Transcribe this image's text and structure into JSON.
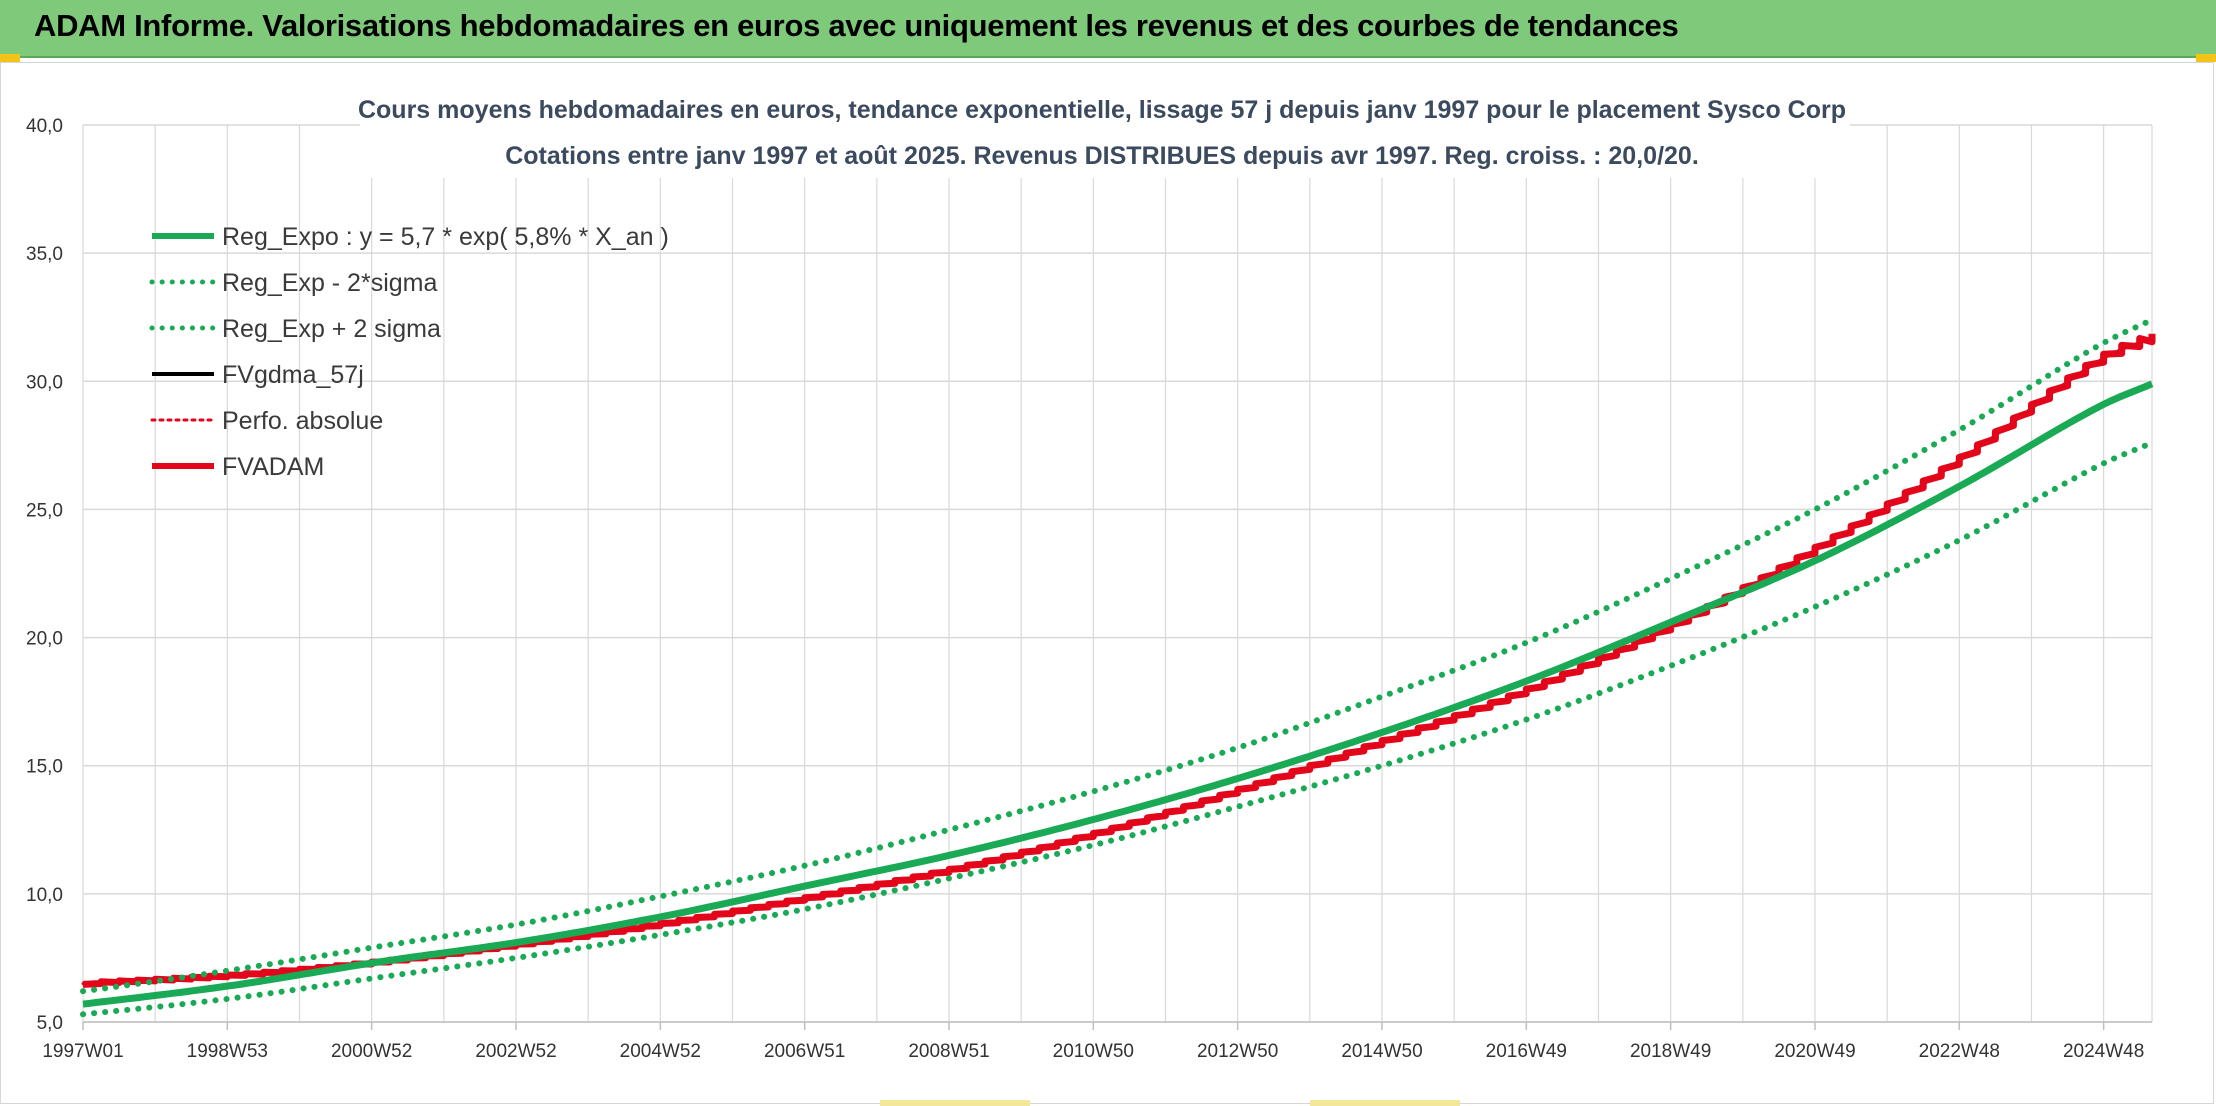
{
  "header": {
    "title": "ADAM Informe. Valorisations hebdomadaires en euros avec uniquement les revenus et des courbes de tendances"
  },
  "colors": {
    "header_bg": "#7fc97a",
    "trend_green": "#1aaa55",
    "fvadam_red": "#e3061b",
    "fvgdma_black": "#000000",
    "grid": "#d9d9d9"
  },
  "chart_data": {
    "type": "line",
    "title_lines": [
      "Cours moyens hebdomadaires en euros, tendance exponentielle, lissage 57 j depuis janv 1997 pour le placement Sysco Corp",
      "Cotations entre janv 1997 et août 2025. Revenus DISTRIBUES depuis avr 1997. Reg. croiss. : 20,0/20."
    ],
    "ylim": [
      5,
      40
    ],
    "yticks": [
      "5,0",
      "10,0",
      "15,0",
      "20,0",
      "25,0",
      "30,0",
      "35,0",
      "40,0"
    ],
    "x_start_year": 1997.0,
    "x_end_year": 2025.67,
    "x_tick_labels": [
      {
        "label": "1997W01",
        "year": 1997.0
      },
      {
        "label": "1998W53",
        "year": 1999.0
      },
      {
        "label": "2000W52",
        "year": 2001.0
      },
      {
        "label": "2002W52",
        "year": 2003.0
      },
      {
        "label": "2004W52",
        "year": 2005.0
      },
      {
        "label": "2006W51",
        "year": 2007.0
      },
      {
        "label": "2008W51",
        "year": 2009.0
      },
      {
        "label": "2010W50",
        "year": 2011.0
      },
      {
        "label": "2012W50",
        "year": 2013.0
      },
      {
        "label": "2014W50",
        "year": 2015.0
      },
      {
        "label": "2016W49",
        "year": 2017.0
      },
      {
        "label": "2018W49",
        "year": 2019.0
      },
      {
        "label": "2020W49",
        "year": 2021.0
      },
      {
        "label": "2022W48",
        "year": 2023.0
      },
      {
        "label": "2024W48",
        "year": 2025.0
      }
    ],
    "grid": true,
    "legend_position": "top-left",
    "series": [
      {
        "name": "Reg_Expo : y = 5,7 * exp( 5,8% *  X_an )",
        "style": "solid",
        "color": "#1aaa55",
        "x": [
          1997,
          1999,
          2001,
          2003,
          2005,
          2007,
          2009,
          2011,
          2013,
          2015,
          2017,
          2019,
          2021,
          2023,
          2025,
          2025.67
        ],
        "y": [
          5.7,
          6.4,
          7.3,
          8.1,
          9.1,
          10.3,
          11.5,
          12.9,
          14.5,
          16.3,
          18.3,
          20.6,
          23.0,
          25.9,
          29.1,
          29.9
        ]
      },
      {
        "name": "Reg_Exp - 2*sigma",
        "style": "dotted",
        "color": "#1aaa55",
        "x": [
          1997,
          1999,
          2001,
          2003,
          2005,
          2007,
          2009,
          2011,
          2013,
          2015,
          2017,
          2019,
          2021,
          2023,
          2025,
          2025.67
        ],
        "y": [
          5.3,
          5.9,
          6.7,
          7.5,
          8.4,
          9.4,
          10.6,
          11.9,
          13.4,
          15.0,
          16.8,
          18.9,
          21.2,
          23.8,
          26.8,
          27.6
        ]
      },
      {
        "name": "Reg_Exp + 2 sigma",
        "style": "dotted",
        "color": "#1aaa55",
        "x": [
          1997,
          1999,
          2001,
          2003,
          2005,
          2007,
          2009,
          2011,
          2013,
          2015,
          2017,
          2019,
          2021,
          2023,
          2025,
          2025.67
        ],
        "y": [
          6.2,
          7.0,
          7.9,
          8.8,
          9.9,
          11.1,
          12.5,
          14.0,
          15.7,
          17.7,
          19.8,
          22.3,
          25.0,
          28.1,
          31.5,
          32.4
        ]
      },
      {
        "name": "FVgdma_57j",
        "style": "solid",
        "color": "#000000",
        "x": [
          1997,
          1999,
          2001,
          2003,
          2005,
          2007,
          2009,
          2011,
          2013,
          2015,
          2017,
          2019,
          2021,
          2023,
          2025,
          2025.67
        ],
        "y": [
          6.5,
          6.8,
          7.3,
          8.0,
          8.8,
          9.8,
          10.9,
          12.3,
          14.0,
          15.9,
          17.9,
          20.4,
          23.4,
          26.9,
          30.9,
          31.7
        ]
      },
      {
        "name": "Perfo. absolue",
        "style": "dotted",
        "color": "#e3061b",
        "x": [
          1997,
          1999,
          2001,
          2003,
          2005,
          2007,
          2009,
          2011,
          2013,
          2015,
          2017,
          2019,
          2021,
          2023,
          2025,
          2025.67
        ],
        "y": [
          6.5,
          6.8,
          7.3,
          8.0,
          8.8,
          9.8,
          10.9,
          12.3,
          14.0,
          15.9,
          17.9,
          20.4,
          23.4,
          26.9,
          30.9,
          31.7
        ]
      },
      {
        "name": "FVADAM",
        "style": "solid-thick",
        "color": "#e3061b",
        "x": [
          1997,
          1999,
          2001,
          2003,
          2005,
          2007,
          2009,
          2011,
          2013,
          2015,
          2017,
          2019,
          2021,
          2023,
          2025,
          2025.67
        ],
        "y": [
          6.5,
          6.8,
          7.3,
          8.0,
          8.8,
          9.8,
          10.9,
          12.3,
          14.0,
          15.9,
          17.9,
          20.4,
          23.4,
          26.9,
          30.9,
          31.7
        ]
      }
    ]
  }
}
